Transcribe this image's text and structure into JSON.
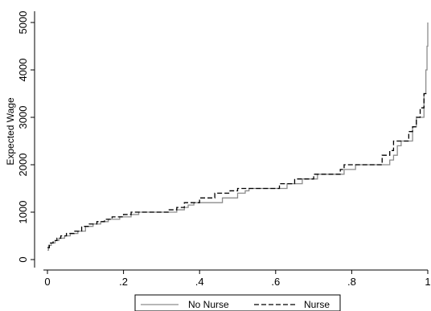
{
  "chart_data": {
    "type": "line",
    "title": "",
    "xlabel": "",
    "ylabel": "Expected Wage",
    "xlim": [
      0,
      1
    ],
    "ylim": [
      0,
      5000
    ],
    "x_ticks": [
      0,
      0.2,
      0.4,
      0.6,
      0.8,
      1
    ],
    "x_tick_labels": [
      "0",
      ".2",
      ".4",
      ".6",
      ".8",
      "1"
    ],
    "y_ticks": [
      0,
      1000,
      2000,
      3000,
      4000,
      5000
    ],
    "y_tick_labels": [
      "0",
      "1000",
      "2000",
      "3000",
      "4000",
      "5000"
    ],
    "grid": false,
    "legend_position": "bottom",
    "series": [
      {
        "name": "No Nurse",
        "style": "solid",
        "color": "#8c8c8c",
        "points": [
          [
            0,
            200
          ],
          [
            0.003,
            300
          ],
          [
            0.01,
            350
          ],
          [
            0.02,
            400
          ],
          [
            0.03,
            450
          ],
          [
            0.045,
            500
          ],
          [
            0.06,
            550
          ],
          [
            0.08,
            600
          ],
          [
            0.1,
            700
          ],
          [
            0.12,
            750
          ],
          [
            0.14,
            800
          ],
          [
            0.16,
            850
          ],
          [
            0.19,
            900
          ],
          [
            0.22,
            950
          ],
          [
            0.24,
            1000
          ],
          [
            0.33,
            1000
          ],
          [
            0.34,
            1050
          ],
          [
            0.36,
            1100
          ],
          [
            0.37,
            1150
          ],
          [
            0.385,
            1200
          ],
          [
            0.45,
            1200
          ],
          [
            0.46,
            1300
          ],
          [
            0.49,
            1300
          ],
          [
            0.5,
            1400
          ],
          [
            0.52,
            1450
          ],
          [
            0.53,
            1500
          ],
          [
            0.62,
            1500
          ],
          [
            0.63,
            1600
          ],
          [
            0.66,
            1600
          ],
          [
            0.67,
            1700
          ],
          [
            0.7,
            1700
          ],
          [
            0.71,
            1800
          ],
          [
            0.77,
            1800
          ],
          [
            0.78,
            1900
          ],
          [
            0.8,
            1900
          ],
          [
            0.81,
            2000
          ],
          [
            0.89,
            2000
          ],
          [
            0.9,
            2100
          ],
          [
            0.91,
            2200
          ],
          [
            0.92,
            2400
          ],
          [
            0.93,
            2500
          ],
          [
            0.955,
            2500
          ],
          [
            0.96,
            2800
          ],
          [
            0.97,
            3000
          ],
          [
            0.985,
            3000
          ],
          [
            0.99,
            3500
          ],
          [
            0.995,
            4000
          ],
          [
            0.998,
            4500
          ],
          [
            1,
            5000
          ]
        ]
      },
      {
        "name": "Nurse",
        "style": "dashed",
        "color": "#000000",
        "points": [
          [
            0,
            250
          ],
          [
            0.005,
            350
          ],
          [
            0.015,
            400
          ],
          [
            0.025,
            450
          ],
          [
            0.035,
            500
          ],
          [
            0.05,
            550
          ],
          [
            0.07,
            600
          ],
          [
            0.09,
            700
          ],
          [
            0.11,
            750
          ],
          [
            0.13,
            800
          ],
          [
            0.15,
            850
          ],
          [
            0.17,
            900
          ],
          [
            0.2,
            950
          ],
          [
            0.22,
            1000
          ],
          [
            0.31,
            1000
          ],
          [
            0.32,
            1050
          ],
          [
            0.34,
            1100
          ],
          [
            0.36,
            1200
          ],
          [
            0.39,
            1200
          ],
          [
            0.4,
            1300
          ],
          [
            0.43,
            1300
          ],
          [
            0.44,
            1400
          ],
          [
            0.47,
            1400
          ],
          [
            0.48,
            1450
          ],
          [
            0.5,
            1500
          ],
          [
            0.6,
            1500
          ],
          [
            0.61,
            1600
          ],
          [
            0.64,
            1600
          ],
          [
            0.65,
            1700
          ],
          [
            0.69,
            1700
          ],
          [
            0.7,
            1800
          ],
          [
            0.76,
            1800
          ],
          [
            0.77,
            1900
          ],
          [
            0.78,
            2000
          ],
          [
            0.87,
            2000
          ],
          [
            0.88,
            2200
          ],
          [
            0.9,
            2300
          ],
          [
            0.91,
            2500
          ],
          [
            0.94,
            2500
          ],
          [
            0.95,
            2700
          ],
          [
            0.96,
            2800
          ],
          [
            0.97,
            3000
          ],
          [
            0.98,
            3200
          ],
          [
            0.99,
            3500
          ],
          [
            1,
            3500
          ]
        ]
      }
    ]
  }
}
